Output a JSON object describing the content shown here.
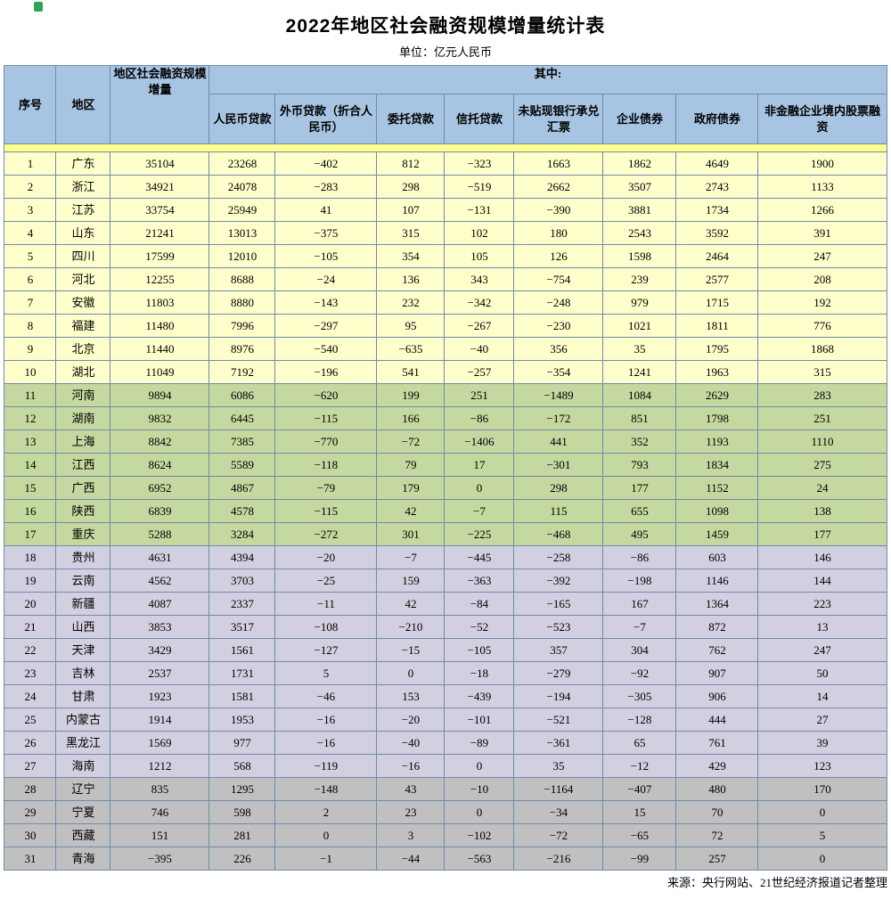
{
  "page": {
    "title": "2022年地区社会融资规模增量统计表",
    "subtitle": "单位：亿元人民币",
    "source": "来源：央行网站、21世纪经济报道记者整理"
  },
  "colors": {
    "header_bg": "#a7c5e2",
    "spacer_bg": "#ffff8c",
    "border": "#6e8cab",
    "band_yellow": "#ffffcc",
    "band_green": "#c5d8a0",
    "band_purple": "#d2cfe0",
    "band_gray": "#c0c0c0"
  },
  "chart_data": {
    "type": "table",
    "title": "2022年地区社会融资规模增量统计表",
    "unit": "亿元人民币",
    "header": {
      "serial": "序号",
      "region": "地区",
      "total": "地区社会融资规模增量",
      "group": "其中:",
      "sub_columns": [
        "人民币贷款",
        "外币贷款（折合人民币）",
        "委托贷款",
        "信托贷款",
        "未贴现银行承兑汇票",
        "企业债券",
        "政府债券",
        "非金融企业境内股票融资"
      ]
    },
    "row_bands": [
      {
        "start": 1,
        "end": 10,
        "color_key": "band_yellow"
      },
      {
        "start": 11,
        "end": 17,
        "color_key": "band_green"
      },
      {
        "start": 18,
        "end": 27,
        "color_key": "band_purple"
      },
      {
        "start": 28,
        "end": 31,
        "color_key": "band_gray"
      }
    ],
    "rows": [
      {
        "no": "1",
        "region": "广东",
        "values": [
          "35104",
          "23268",
          "−402",
          "812",
          "−323",
          "1663",
          "1862",
          "4649",
          "1900"
        ]
      },
      {
        "no": "2",
        "region": "浙江",
        "values": [
          "34921",
          "24078",
          "−283",
          "298",
          "−519",
          "2662",
          "3507",
          "2743",
          "1133"
        ]
      },
      {
        "no": "3",
        "region": "江苏",
        "values": [
          "33754",
          "25949",
          "41",
          "107",
          "−131",
          "−390",
          "3881",
          "1734",
          "1266"
        ]
      },
      {
        "no": "4",
        "region": "山东",
        "values": [
          "21241",
          "13013",
          "−375",
          "315",
          "102",
          "180",
          "2543",
          "3592",
          "391"
        ]
      },
      {
        "no": "5",
        "region": "四川",
        "values": [
          "17599",
          "12010",
          "−105",
          "354",
          "105",
          "126",
          "1598",
          "2464",
          "247"
        ]
      },
      {
        "no": "6",
        "region": "河北",
        "values": [
          "12255",
          "8688",
          "−24",
          "136",
          "343",
          "−754",
          "239",
          "2577",
          "208"
        ]
      },
      {
        "no": "7",
        "region": "安徽",
        "values": [
          "11803",
          "8880",
          "−143",
          "232",
          "−342",
          "−248",
          "979",
          "1715",
          "192"
        ]
      },
      {
        "no": "8",
        "region": "福建",
        "values": [
          "11480",
          "7996",
          "−297",
          "95",
          "−267",
          "−230",
          "1021",
          "1811",
          "776"
        ]
      },
      {
        "no": "9",
        "region": "北京",
        "values": [
          "11440",
          "8976",
          "−540",
          "−635",
          "−40",
          "356",
          "35",
          "1795",
          "1868"
        ]
      },
      {
        "no": "10",
        "region": "湖北",
        "values": [
          "11049",
          "7192",
          "−196",
          "541",
          "−257",
          "−354",
          "1241",
          "1963",
          "315"
        ]
      },
      {
        "no": "11",
        "region": "河南",
        "values": [
          "9894",
          "6086",
          "−620",
          "199",
          "251",
          "−1489",
          "1084",
          "2629",
          "283"
        ]
      },
      {
        "no": "12",
        "region": "湖南",
        "values": [
          "9832",
          "6445",
          "−115",
          "166",
          "−86",
          "−172",
          "851",
          "1798",
          "251"
        ]
      },
      {
        "no": "13",
        "region": "上海",
        "values": [
          "8842",
          "7385",
          "−770",
          "−72",
          "−1406",
          "441",
          "352",
          "1193",
          "1110"
        ]
      },
      {
        "no": "14",
        "region": "江西",
        "values": [
          "8624",
          "5589",
          "−118",
          "79",
          "17",
          "−301",
          "793",
          "1834",
          "275"
        ]
      },
      {
        "no": "15",
        "region": "广西",
        "values": [
          "6952",
          "4867",
          "−79",
          "179",
          "0",
          "298",
          "177",
          "1152",
          "24"
        ]
      },
      {
        "no": "16",
        "region": "陕西",
        "values": [
          "6839",
          "4578",
          "−115",
          "42",
          "−7",
          "115",
          "655",
          "1098",
          "138"
        ]
      },
      {
        "no": "17",
        "region": "重庆",
        "values": [
          "5288",
          "3284",
          "−272",
          "301",
          "−225",
          "−468",
          "495",
          "1459",
          "177"
        ]
      },
      {
        "no": "18",
        "region": "贵州",
        "values": [
          "4631",
          "4394",
          "−20",
          "−7",
          "−445",
          "−258",
          "−86",
          "603",
          "146"
        ]
      },
      {
        "no": "19",
        "region": "云南",
        "values": [
          "4562",
          "3703",
          "−25",
          "159",
          "−363",
          "−392",
          "−198",
          "1146",
          "144"
        ]
      },
      {
        "no": "20",
        "region": "新疆",
        "values": [
          "4087",
          "2337",
          "−11",
          "42",
          "−84",
          "−165",
          "167",
          "1364",
          "223"
        ]
      },
      {
        "no": "21",
        "region": "山西",
        "values": [
          "3853",
          "3517",
          "−108",
          "−210",
          "−52",
          "−523",
          "−7",
          "872",
          "13"
        ]
      },
      {
        "no": "22",
        "region": "天津",
        "values": [
          "3429",
          "1561",
          "−127",
          "−15",
          "−105",
          "357",
          "304",
          "762",
          "247"
        ]
      },
      {
        "no": "23",
        "region": "吉林",
        "values": [
          "2537",
          "1731",
          "5",
          "0",
          "−18",
          "−279",
          "−92",
          "907",
          "50"
        ]
      },
      {
        "no": "24",
        "region": "甘肃",
        "values": [
          "1923",
          "1581",
          "−46",
          "153",
          "−439",
          "−194",
          "−305",
          "906",
          "14"
        ]
      },
      {
        "no": "25",
        "region": "内蒙古",
        "values": [
          "1914",
          "1953",
          "−16",
          "−20",
          "−101",
          "−521",
          "−128",
          "444",
          "27"
        ]
      },
      {
        "no": "26",
        "region": "黑龙江",
        "values": [
          "1569",
          "977",
          "−16",
          "−40",
          "−89",
          "−361",
          "65",
          "761",
          "39"
        ]
      },
      {
        "no": "27",
        "region": "海南",
        "values": [
          "1212",
          "568",
          "−119",
          "−16",
          "0",
          "35",
          "−12",
          "429",
          "123"
        ]
      },
      {
        "no": "28",
        "region": "辽宁",
        "values": [
          "835",
          "1295",
          "−148",
          "43",
          "−10",
          "−1164",
          "−407",
          "480",
          "170"
        ]
      },
      {
        "no": "29",
        "region": "宁夏",
        "values": [
          "746",
          "598",
          "2",
          "23",
          "0",
          "−34",
          "15",
          "70",
          "0"
        ]
      },
      {
        "no": "30",
        "region": "西藏",
        "values": [
          "151",
          "281",
          "0",
          "3",
          "−102",
          "−72",
          "−65",
          "72",
          "5"
        ]
      },
      {
        "no": "31",
        "region": "青海",
        "values": [
          "−395",
          "226",
          "−1",
          "−44",
          "−563",
          "−216",
          "−99",
          "257",
          "0"
        ]
      }
    ]
  }
}
